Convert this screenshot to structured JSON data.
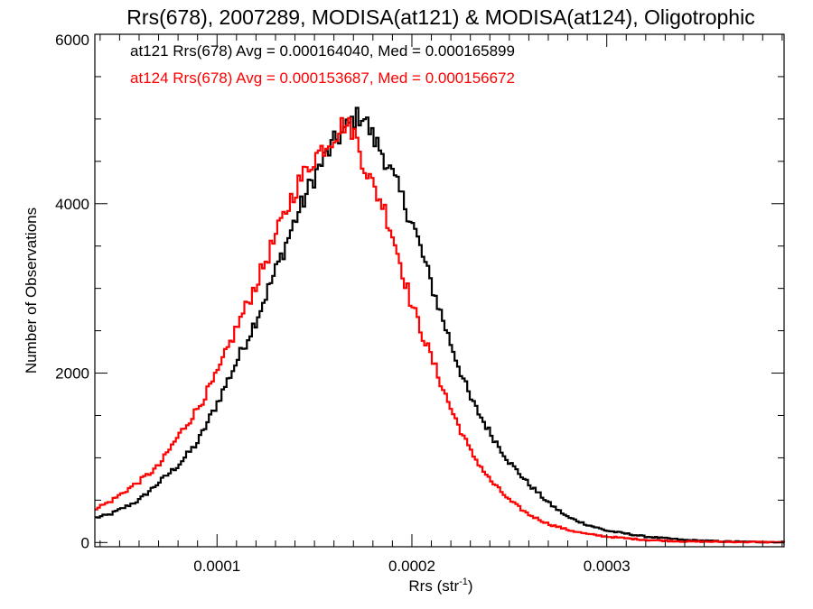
{
  "chart_data": {
    "type": "line",
    "title": "Rrs(678), 2007289, MODISA(at121) & MODISA(at124), Oligotrophic",
    "xlabel": "Rrs (str",
    "xlabel_sup": "-1",
    "xlabel_close": ")",
    "ylabel": "Number of Observations",
    "xlim": [
      3.73e-05,
      0.000391
    ],
    "ylim": [
      -50,
      6000
    ],
    "x_ticks": [
      {
        "value": 0.0001,
        "label": "0.0001"
      },
      {
        "value": 0.0002,
        "label": "0.0002"
      },
      {
        "value": 0.0003,
        "label": "0.0003"
      }
    ],
    "y_ticks": [
      {
        "value": 0,
        "label": "0"
      },
      {
        "value": 2000,
        "label": "2000"
      },
      {
        "value": 4000,
        "label": "4000"
      },
      {
        "value": 6000,
        "label": "6000"
      }
    ],
    "grid": false,
    "legend": "top-left",
    "series": [
      {
        "name": "at121",
        "legend_text": "at121 Rrs(678) Avg = 0.000164040, Med = 0.000165899",
        "color": "#000000",
        "anchors": [
          [
            3.73e-05,
            290
          ],
          [
            4.5e-05,
            330
          ],
          [
            6e-05,
            500
          ],
          [
            8e-05,
            910
          ],
          [
            9e-05,
            1180
          ],
          [
            0.0001,
            1640
          ],
          [
            0.00011,
            2130
          ],
          [
            0.00012,
            2630
          ],
          [
            0.00013,
            3200
          ],
          [
            0.00014,
            3800
          ],
          [
            0.00015,
            4330
          ],
          [
            0.00016,
            4720
          ],
          [
            0.000165,
            4850
          ],
          [
            0.00017,
            5000
          ],
          [
            0.000175,
            5050
          ],
          [
            0.00018,
            4780
          ],
          [
            0.000185,
            4600
          ],
          [
            0.00019,
            4330
          ],
          [
            0.0002,
            3800
          ],
          [
            0.00021,
            3050
          ],
          [
            0.00022,
            2350
          ],
          [
            0.00023,
            1700
          ],
          [
            0.00024,
            1300
          ],
          [
            0.00025,
            950
          ],
          [
            0.00026,
            690
          ],
          [
            0.00027,
            470
          ],
          [
            0.00028,
            300
          ],
          [
            0.00029,
            210
          ],
          [
            0.0003,
            140
          ],
          [
            0.00032,
            70
          ],
          [
            0.00034,
            30
          ],
          [
            0.00036,
            12
          ],
          [
            0.000391,
            3
          ]
        ]
      },
      {
        "name": "at124",
        "legend_text": "at124 Rrs(678) Avg = 0.000153687, Med = 0.000156672",
        "color": "#ff0000",
        "anchors": [
          [
            3.73e-05,
            400
          ],
          [
            4.5e-05,
            480
          ],
          [
            6e-05,
            720
          ],
          [
            7e-05,
            900
          ],
          [
            8e-05,
            1250
          ],
          [
            9e-05,
            1580
          ],
          [
            0.0001,
            1980
          ],
          [
            0.00011,
            2530
          ],
          [
            0.00012,
            3050
          ],
          [
            0.00013,
            3600
          ],
          [
            0.00014,
            4170
          ],
          [
            0.00015,
            4550
          ],
          [
            0.00016,
            4800
          ],
          [
            0.000165,
            4950
          ],
          [
            0.00017,
            4870
          ],
          [
            0.000175,
            4500
          ],
          [
            0.00018,
            4200
          ],
          [
            0.000185,
            4000
          ],
          [
            0.00019,
            3650
          ],
          [
            0.0002,
            2800
          ],
          [
            0.00021,
            2180
          ],
          [
            0.00022,
            1580
          ],
          [
            0.00023,
            1080
          ],
          [
            0.00024,
            740
          ],
          [
            0.00025,
            500
          ],
          [
            0.00026,
            330
          ],
          [
            0.00027,
            220
          ],
          [
            0.00028,
            150
          ],
          [
            0.00029,
            100
          ],
          [
            0.0003,
            70
          ],
          [
            0.00032,
            30
          ],
          [
            0.00034,
            12
          ],
          [
            0.000391,
            3
          ]
        ]
      }
    ]
  }
}
